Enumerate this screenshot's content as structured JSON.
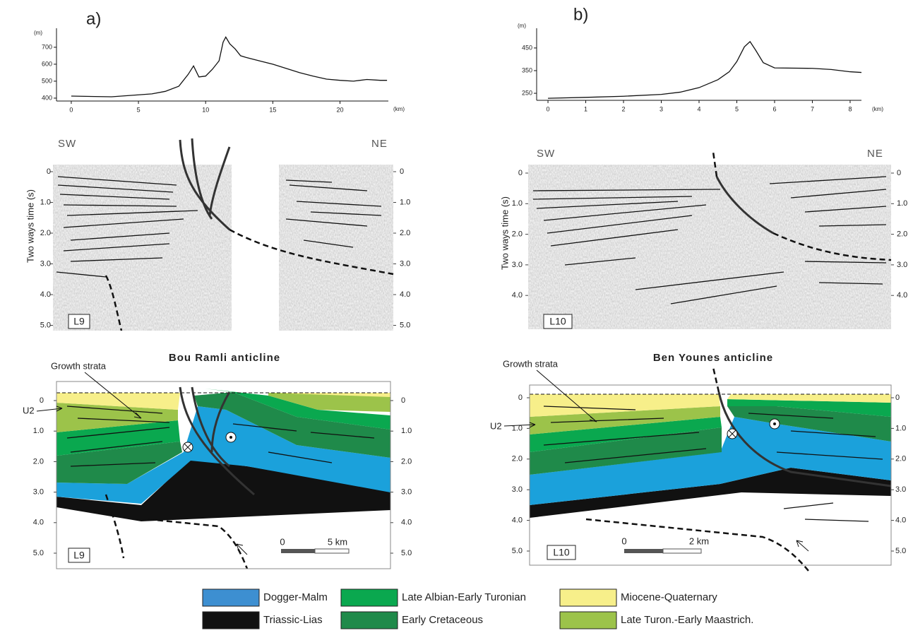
{
  "panels": [
    {
      "label": "a)",
      "profile": {
        "y_unit": "(m)",
        "x_unit": "(km)",
        "x": [
          0,
          3,
          6,
          7,
          8,
          8.7,
          9.1,
          9.5,
          10,
          10.5,
          11,
          11.3,
          11.5,
          11.8,
          12.2,
          12.6,
          13,
          14,
          15,
          16,
          17,
          18,
          19,
          20,
          21,
          22,
          23,
          23.5
        ],
        "values": [
          412,
          408,
          425,
          440,
          470,
          540,
          590,
          525,
          530,
          570,
          620,
          730,
          760,
          720,
          690,
          650,
          640,
          620,
          600,
          575,
          550,
          530,
          512,
          505,
          500,
          510,
          505,
          505
        ],
        "xlim": [
          -1.1,
          23.6
        ],
        "ylim": [
          383,
          812
        ],
        "xticks": [
          0,
          5,
          10,
          15,
          20
        ],
        "yticks": [
          400,
          500,
          600,
          700
        ]
      },
      "seismic": {
        "left": "SW",
        "right": "NE",
        "line": "L9",
        "ticks": [
          0,
          {
            "value": 1,
            "label": "1.0"
          },
          {
            "value": 2,
            "label": "2.0"
          },
          {
            "value": 3,
            "label": "3.0"
          },
          {
            "value": 4,
            "label": "4.0"
          },
          {
            "value": 5,
            "label": "5.0"
          }
        ]
      },
      "section": {
        "title": "Bou Ramli anticline",
        "growth": "Growth strata",
        "unconformity": "U2",
        "line": "L9",
        "scale_start": "0",
        "scale_end": "5 km",
        "ticks": [
          0,
          {
            "value": 1,
            "label": "1.0"
          },
          {
            "value": 2,
            "label": "2.0"
          },
          {
            "value": 3,
            "label": "3.0"
          },
          {
            "value": 4,
            "label": "4.0"
          },
          {
            "value": 5,
            "label": "5.0"
          }
        ]
      }
    },
    {
      "label": "b)",
      "profile": {
        "y_unit": "(m)",
        "x_unit": "(km)",
        "x": [
          0,
          1,
          2,
          3,
          3.5,
          4,
          4.5,
          4.8,
          5,
          5.2,
          5.35,
          5.5,
          5.7,
          6,
          7,
          7.5,
          8,
          8.3
        ],
        "values": [
          228,
          232,
          237,
          245,
          255,
          275,
          310,
          345,
          390,
          455,
          478,
          440,
          385,
          362,
          360,
          355,
          345,
          342
        ],
        "xlim": [
          -0.3,
          8.3
        ],
        "ylim": [
          219,
          537
        ],
        "xticks": [
          0,
          1,
          2,
          3,
          4,
          5,
          6,
          7,
          8
        ],
        "yticks": [
          250,
          350,
          450
        ]
      },
      "seismic": {
        "left": "SW",
        "right": "NE",
        "line": "L10",
        "ticks": [
          0,
          {
            "value": 1,
            "label": "1.0"
          },
          {
            "value": 2,
            "label": "2.0"
          },
          {
            "value": 3,
            "label": "3.0"
          },
          {
            "value": 4,
            "label": "4.0"
          }
        ]
      },
      "section": {
        "title": "Ben Younes anticline",
        "growth": "Growth strata",
        "unconformity": "U2",
        "line": "L10",
        "scale_start": "0",
        "scale_end": "2 km",
        "ticks": [
          0,
          {
            "value": 1,
            "label": "1.0"
          },
          {
            "value": 2,
            "label": "2.0"
          },
          {
            "value": 3,
            "label": "3.0"
          },
          {
            "value": 4,
            "label": "4.0"
          },
          {
            "value": 5,
            "label": "5.0"
          }
        ]
      }
    }
  ],
  "time_axis_label": "Two ways time (s)",
  "legend": [
    "Dogger-Malm",
    "Late Albian-Early Turonian",
    "Miocene-Quaternary",
    "Triassic-Lias",
    "Early Cretaceous",
    "Late Turon.-Early Maastrich."
  ]
}
